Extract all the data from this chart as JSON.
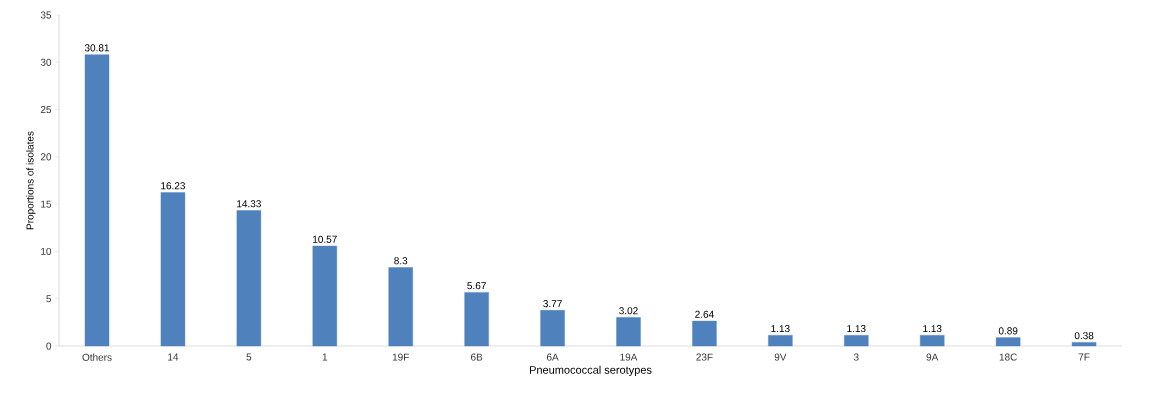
{
  "chart_data": {
    "type": "bar",
    "xlabel": "Pneumococcal serotypes",
    "ylabel": "Proportions of isolates",
    "categories": [
      "Others",
      "14",
      "5",
      "1",
      "19F",
      "6B",
      "6A",
      "19A",
      "23F",
      "9V",
      "3",
      "9A",
      "18C",
      "7F"
    ],
    "values": [
      30.81,
      16.23,
      14.33,
      10.57,
      8.3,
      5.67,
      3.77,
      3.02,
      2.64,
      1.13,
      1.13,
      1.13,
      0.89,
      0.38
    ],
    "color": "#4f81bd",
    "ylim": [
      0,
      35
    ],
    "yticks": [
      0,
      5,
      10,
      15,
      20,
      25,
      30,
      35
    ],
    "data_labels": true
  }
}
